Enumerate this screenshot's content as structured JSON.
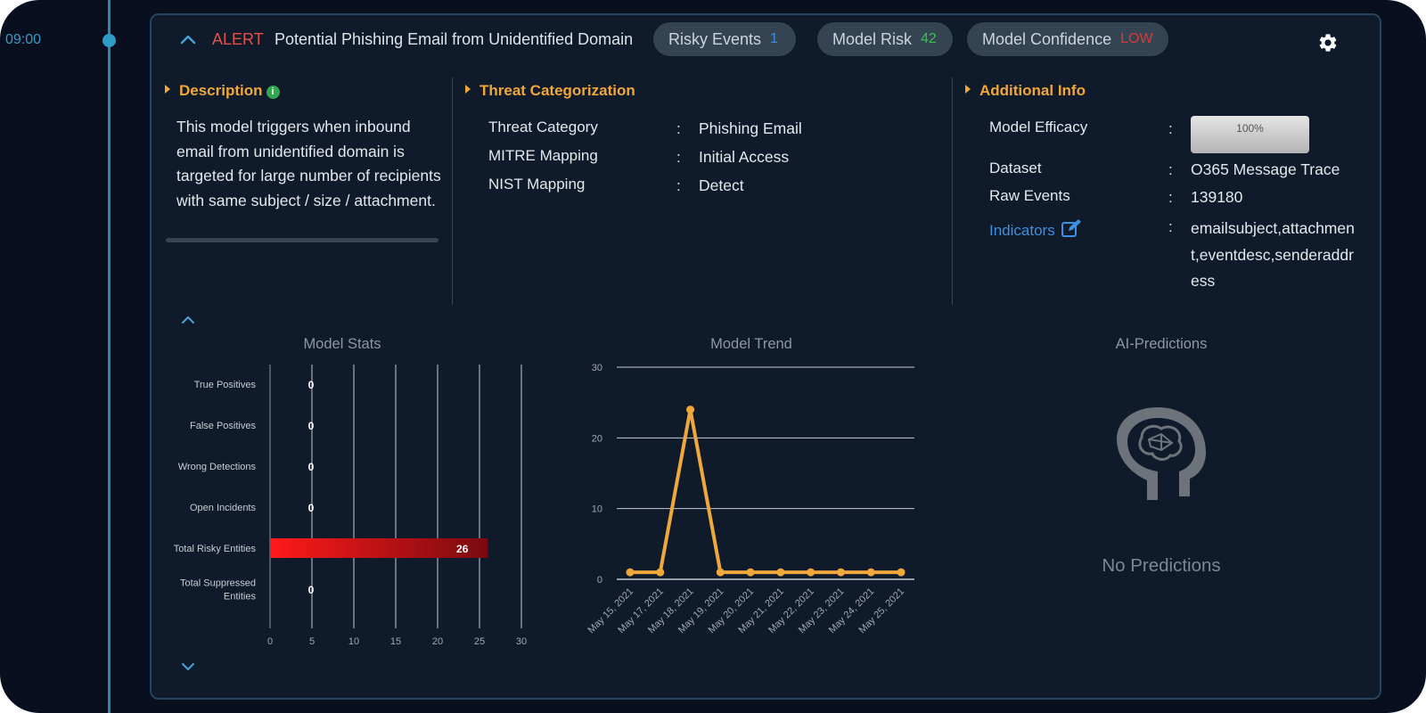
{
  "timeline": {
    "time": "09:00"
  },
  "header": {
    "alert_label": "ALERT",
    "title": "Potential Phishing Email from Unidentified Domain",
    "pills": {
      "risky_events": {
        "label": "Risky Events",
        "value": "1",
        "value_color": "#3b8fe0"
      },
      "model_risk": {
        "label": "Model Risk",
        "value": "42",
        "value_color": "#3cc24d"
      },
      "model_confidence": {
        "label": "Model Confidence",
        "value": "LOW",
        "value_color": "#d63a3a"
      }
    },
    "icons": {
      "collapse": "chevron-up-icon",
      "settings": "gear-icon"
    }
  },
  "description": {
    "title": "Description",
    "info_icon": "i",
    "text": "This model triggers when inbound email from unidentified domain is targeted for large number of recipients with same subject / size / attachment."
  },
  "threat": {
    "title": "Threat Categorization",
    "rows": [
      {
        "key": "Threat Category",
        "value": "Phishing Email"
      },
      {
        "key": "MITRE Mapping",
        "value": "Initial Access"
      },
      {
        "key": "NIST Mapping",
        "value": "Detect"
      }
    ]
  },
  "additional": {
    "title": "Additional Info",
    "model_efficacy": {
      "key": "Model Efficacy",
      "value": "100%"
    },
    "dataset": {
      "key": "Dataset",
      "value": "O365 Message Trace"
    },
    "raw_events": {
      "key": "Raw Events",
      "value": "139180"
    },
    "indicators": {
      "key": "Indicators",
      "value": "emailsubject,attachment,eventdesc,senderaddress"
    }
  },
  "colon": ":",
  "model_stats": {
    "title": "Model Stats",
    "chart_data": {
      "type": "bar",
      "orientation": "horizontal",
      "categories": [
        "True Positives",
        "False Positives",
        "Wrong Detections",
        "Open Incidents",
        "Total Risky Entities",
        "Total Suppressed Entities"
      ],
      "values": [
        0,
        0,
        0,
        0,
        26,
        0
      ],
      "xlim": [
        0,
        30
      ],
      "xticks": [
        "0",
        "5",
        "10",
        "15",
        "20",
        "25",
        "30"
      ],
      "grid": true,
      "bar_color": "#e01010"
    }
  },
  "model_trend": {
    "title": "Model Trend",
    "chart_data": {
      "type": "line",
      "x": [
        "May 15, 2021",
        "May 17, 2021",
        "May 18, 2021",
        "May 19, 2021",
        "May 20, 2021",
        "May 21, 2021",
        "May 22, 2021",
        "May 23, 2021",
        "May 24, 2021",
        "May 25, 2021"
      ],
      "values": [
        1,
        1,
        24,
        1,
        1,
        1,
        1,
        1,
        1,
        1
      ],
      "ylim": [
        0,
        30
      ],
      "yticks": [
        "0",
        "10",
        "20",
        "30"
      ],
      "grid": true,
      "line_color": "#f0a83c"
    }
  },
  "ai_predictions": {
    "title": "AI-Predictions",
    "icon": "brain-head-icon",
    "empty_text": "No Predictions"
  }
}
